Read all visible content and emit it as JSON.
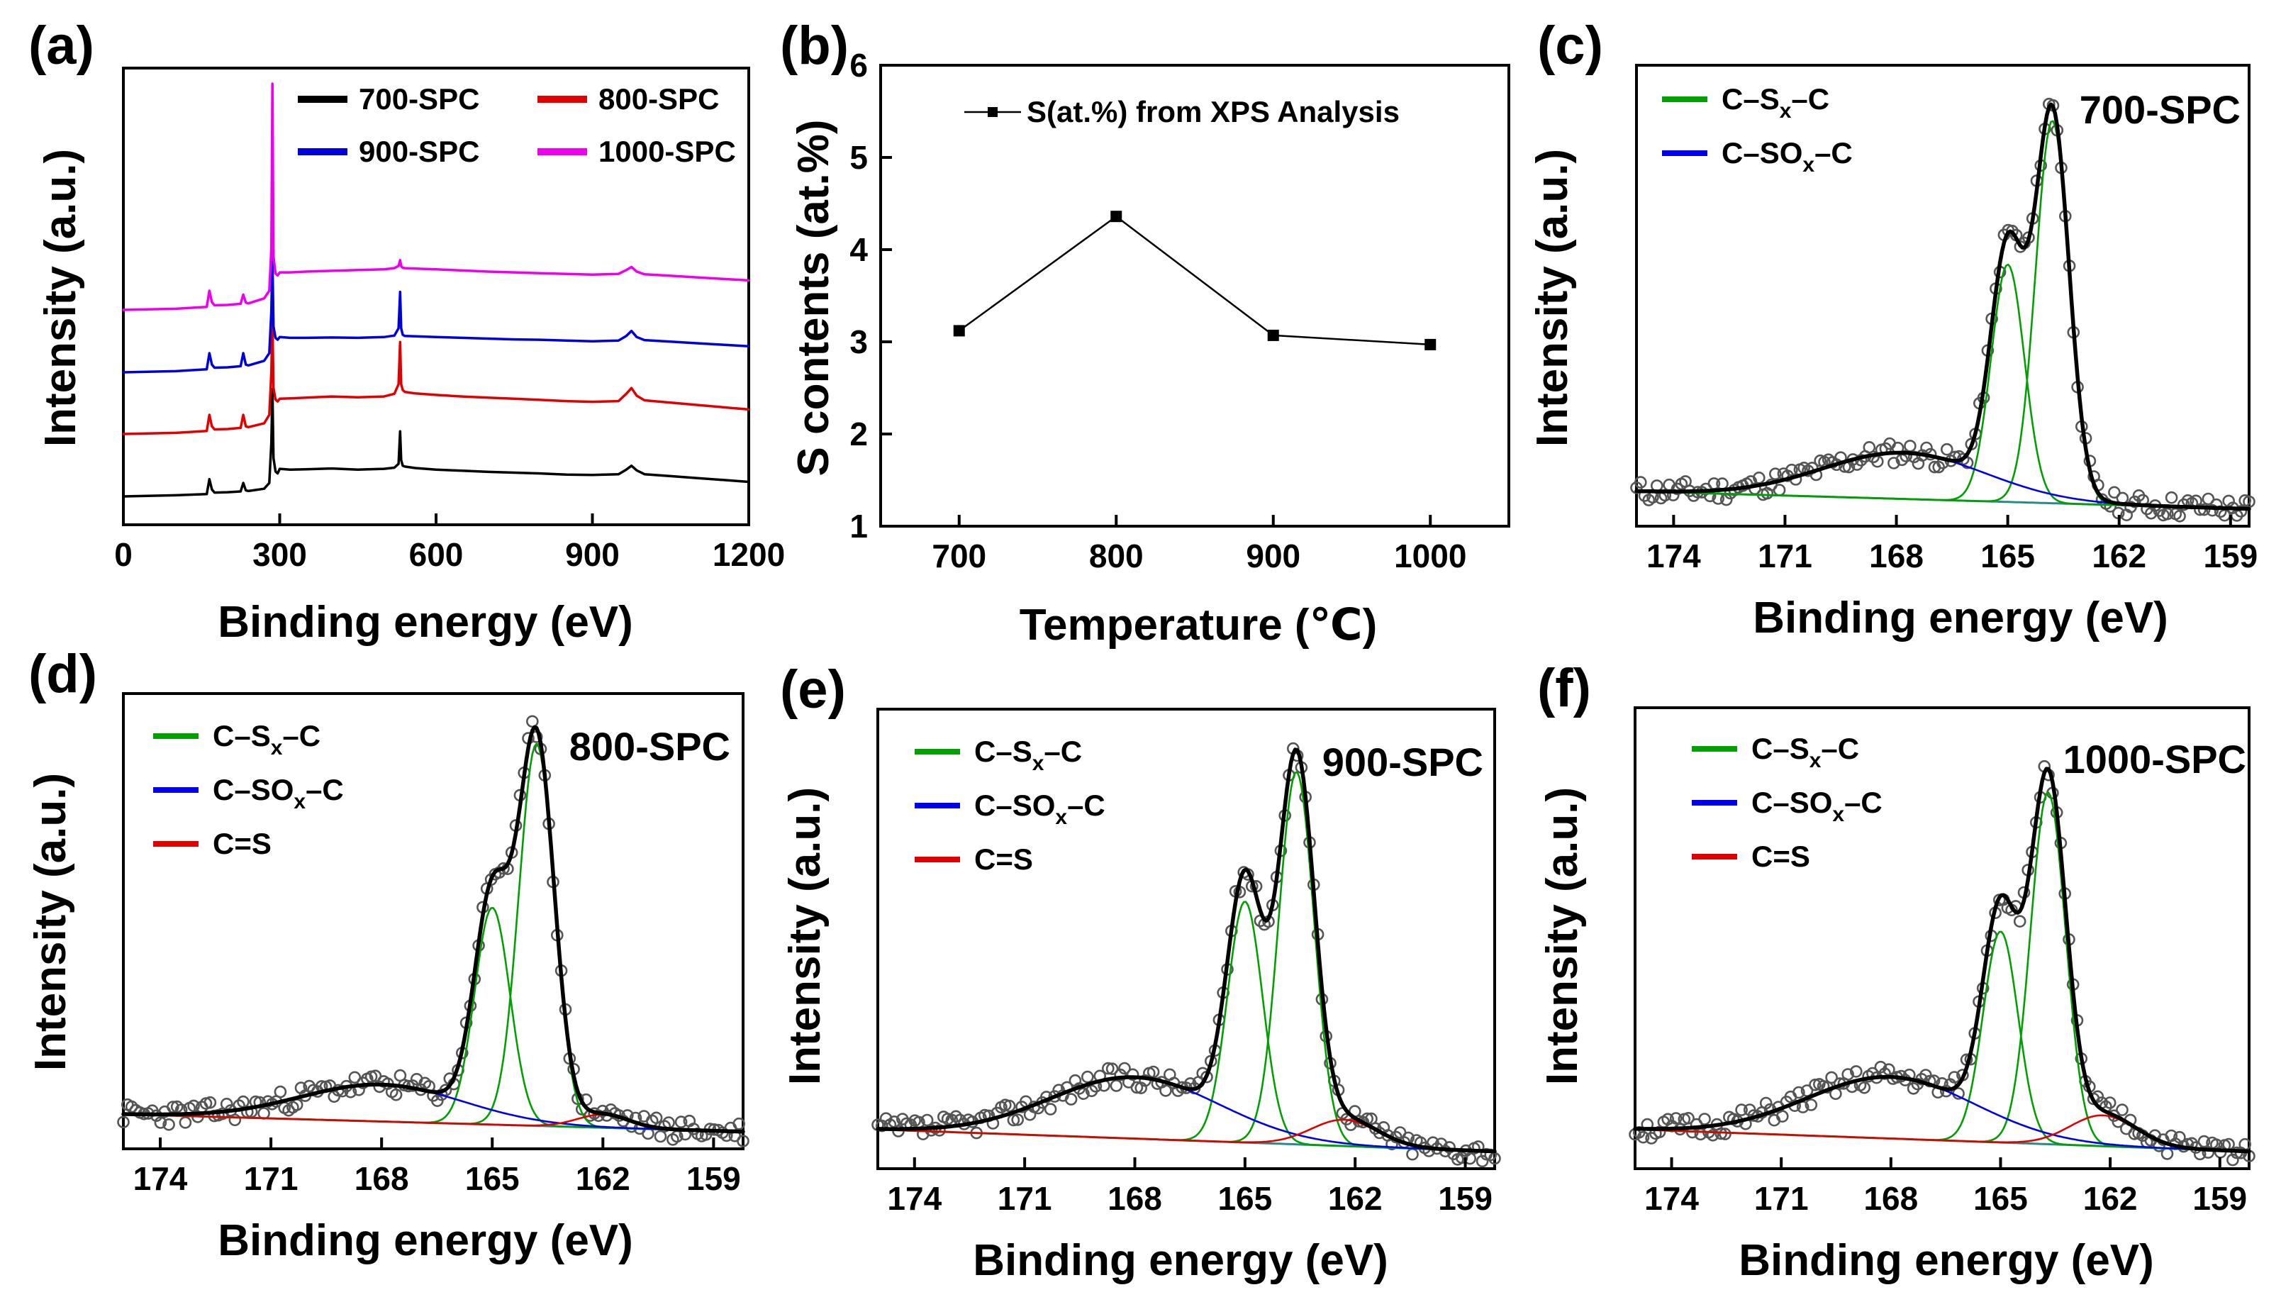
{
  "colors": {
    "s700": "#000000",
    "s800": "#e00000",
    "s900": "#0000dd",
    "s1000": "#ee00ee",
    "csxc": "#00a000",
    "csoxc": "#0000ee",
    "cs": "#e00000",
    "baseline": "#2a8a8a",
    "envelope": "#000000",
    "points": "#555555"
  },
  "chart_data": [
    {
      "panel": "(a)",
      "type": "line",
      "xlabel": "Binding energy (eV)",
      "ylabel": "Intensity (a.u.)",
      "xlim": [
        0,
        1200
      ],
      "xticks": [
        0,
        300,
        600,
        900,
        1200
      ],
      "x": [
        0,
        100,
        160,
        165,
        170,
        175,
        200,
        225,
        230,
        235,
        240,
        270,
        280,
        284,
        286,
        288,
        292,
        296,
        300,
        320,
        350,
        400,
        450,
        500,
        520,
        528,
        531,
        533,
        536,
        540,
        560,
        600,
        650,
        700,
        750,
        800,
        850,
        900,
        950,
        965,
        975,
        985,
        1000,
        1050,
        1100,
        1150,
        1200
      ],
      "series": [
        {
          "name": "700-SPC",
          "color_key": "s700",
          "values": [
            0.0,
            0.3,
            0.6,
            4.5,
            1.8,
            1.0,
            1.1,
            1.3,
            3.5,
            1.6,
            1.4,
            2.0,
            3.5,
            14,
            28,
            10,
            6.5,
            6.0,
            7.2,
            7.0,
            7.1,
            7.3,
            7.0,
            7.2,
            7.5,
            8.5,
            17,
            9.5,
            8.0,
            7.8,
            7.4,
            7.0,
            6.7,
            6.4,
            6.2,
            6.0,
            5.7,
            5.6,
            5.8,
            7.0,
            8.0,
            6.8,
            5.8,
            5.3,
            4.8,
            4.3,
            3.8
          ]
        },
        {
          "name": "800-SPC",
          "color_key": "s800",
          "values": [
            0.0,
            0.3,
            0.8,
            5.0,
            2.0,
            1.2,
            1.3,
            1.6,
            5.0,
            2.0,
            1.8,
            2.8,
            5.0,
            16,
            30,
            12,
            9.0,
            8.5,
            9.2,
            9.3,
            9.5,
            9.8,
            9.6,
            9.8,
            10.5,
            13,
            24,
            13,
            11.5,
            11.0,
            10.6,
            10.2,
            9.8,
            9.5,
            9.2,
            8.9,
            8.6,
            8.4,
            8.6,
            10.5,
            12,
            10.0,
            8.8,
            8.2,
            7.6,
            7.0,
            6.4
          ]
        },
        {
          "name": "900-SPC",
          "color_key": "s900",
          "values": [
            0.0,
            0.3,
            0.8,
            5.0,
            2.0,
            1.2,
            1.3,
            1.6,
            5.0,
            2.0,
            1.8,
            3.0,
            5.0,
            16,
            30,
            12,
            9.0,
            8.5,
            9.2,
            9.0,
            9.0,
            9.1,
            9.0,
            9.2,
            9.6,
            11.5,
            21,
            11.5,
            9.8,
            9.5,
            9.4,
            9.2,
            9.0,
            8.8,
            8.6,
            8.5,
            8.3,
            8.1,
            8.3,
            9.5,
            10.8,
            9.2,
            8.4,
            8.0,
            7.6,
            7.2,
            6.8
          ]
        },
        {
          "name": "1000-SPC",
          "color_key": "s1000",
          "values": [
            0.0,
            0.3,
            0.8,
            5.0,
            2.0,
            1.2,
            1.3,
            1.6,
            4.0,
            1.9,
            1.7,
            3.0,
            5.0,
            16,
            60,
            14,
            9.5,
            9.0,
            9.8,
            9.8,
            10.0,
            10.2,
            10.4,
            10.6,
            10.9,
            11.5,
            13.0,
            11.4,
            11.0,
            10.9,
            10.8,
            10.6,
            10.3,
            10.0,
            9.8,
            9.6,
            9.4,
            9.2,
            9.4,
            10.4,
            11.2,
            10.0,
            9.3,
            8.9,
            8.5,
            8.1,
            7.7
          ]
        }
      ],
      "legend": [
        {
          "label": "700-SPC",
          "color_key": "s700"
        },
        {
          "label": "800-SPC",
          "color_key": "s800"
        },
        {
          "label": "900-SPC",
          "color_key": "s900"
        },
        {
          "label": "1000-SPC",
          "color_key": "s1000"
        }
      ]
    },
    {
      "panel": "(b)",
      "type": "line",
      "xlabel": "Temperature (℃)",
      "ylabel": "S contents (at.%)",
      "xlim": [
        650,
        1050
      ],
      "ylim": [
        1,
        6
      ],
      "xticks": [
        700,
        800,
        900,
        1000
      ],
      "yticks": [
        1,
        2,
        3,
        4,
        5,
        6
      ],
      "x": [
        700,
        800,
        900,
        1000
      ],
      "series": [
        {
          "name": "S(at.%) from XPS Analysis",
          "values": [
            3.12,
            4.36,
            3.07,
            2.97
          ]
        }
      ],
      "legend": [
        {
          "label": "S(at.%) from XPS Analysis"
        }
      ]
    },
    {
      "panel": "(c)",
      "type": "line",
      "sample": "700-SPC",
      "xlabel": "Binding energy (eV)",
      "ylabel": "Intensity (a.u.)",
      "xlim": [
        175,
        158.5
      ],
      "xticks": [
        174,
        171,
        168,
        165,
        162,
        159
      ],
      "baseline": {
        "start": 0.06,
        "end": 0.02
      },
      "peaks": [
        {
          "name": "C–Sx–C",
          "color_key": "csxc",
          "center": 163.8,
          "height": 0.87,
          "width": 0.45
        },
        {
          "name": "C–Sx–C",
          "color_key": "csxc",
          "center": 165.0,
          "height": 0.54,
          "width": 0.45
        },
        {
          "name": "C–SOx–C",
          "color_key": "csoxc",
          "center": 167.8,
          "height": 0.105,
          "width": 2.2
        }
      ],
      "legend": [
        {
          "label": "C–S",
          "sub": "x",
          "label_end": "–C",
          "color_key": "csxc"
        },
        {
          "label": "C–SO",
          "sub": "x",
          "label_end": "–C",
          "color_key": "csoxc"
        }
      ]
    },
    {
      "panel": "(d)",
      "type": "line",
      "sample": "800-SPC",
      "xlabel": "Binding energy (eV)",
      "ylabel": "Intensity (a.u.)",
      "xlim": [
        175,
        158.2
      ],
      "xticks": [
        174,
        171,
        168,
        165,
        162,
        159
      ],
      "baseline": {
        "start": 0.06,
        "end": 0.02
      },
      "peaks": [
        {
          "name": "C–Sx–C",
          "color_key": "csxc",
          "center": 163.8,
          "height": 0.88,
          "width": 0.48
        },
        {
          "name": "C–Sx–C",
          "color_key": "csxc",
          "center": 165.0,
          "height": 0.5,
          "width": 0.48
        },
        {
          "name": "C–SOx–C",
          "color_key": "csoxc",
          "center": 168.0,
          "height": 0.085,
          "width": 2.2
        },
        {
          "name": "C=S",
          "color_key": "cs",
          "center": 162.0,
          "height": 0.03,
          "width": 0.7
        }
      ],
      "legend": [
        {
          "label": "C–S",
          "sub": "x",
          "label_end": "–C",
          "color_key": "csxc"
        },
        {
          "label": "C–SO",
          "sub": "x",
          "label_end": "–C",
          "color_key": "csoxc"
        },
        {
          "label": "C=S",
          "sub": "",
          "label_end": "",
          "color_key": "cs"
        }
      ]
    },
    {
      "panel": "(e)",
      "type": "line",
      "sample": "900-SPC",
      "xlabel": "Binding energy (eV)",
      "ylabel": "Intensity (a.u.)",
      "xlim": [
        175,
        158.2
      ],
      "xticks": [
        174,
        171,
        168,
        165,
        162,
        159
      ],
      "baseline": {
        "start": 0.07,
        "end": 0.02
      },
      "peaks": [
        {
          "name": "C–Sx–C",
          "color_key": "csxc",
          "center": 163.6,
          "height": 0.85,
          "width": 0.48
        },
        {
          "name": "C–Sx–C",
          "color_key": "csxc",
          "center": 165.0,
          "height": 0.55,
          "width": 0.48
        },
        {
          "name": "C–SOx–C",
          "color_key": "csoxc",
          "center": 168.0,
          "height": 0.14,
          "width": 2.3
        },
        {
          "name": "C=S",
          "color_key": "cs",
          "center": 162.3,
          "height": 0.06,
          "width": 0.9
        }
      ],
      "legend": [
        {
          "label": "C–S",
          "sub": "x",
          "label_end": "–C",
          "color_key": "csxc"
        },
        {
          "label": "C–SO",
          "sub": "x",
          "label_end": "–C",
          "color_key": "csoxc"
        },
        {
          "label": "C=S",
          "sub": "",
          "label_end": "",
          "color_key": "cs"
        }
      ]
    },
    {
      "panel": "(f)",
      "type": "line",
      "sample": "1000-SPC",
      "xlabel": "Binding energy (eV)",
      "ylabel": "Intensity (a.u.)",
      "xlim": [
        175,
        158.2
      ],
      "xticks": [
        174,
        171,
        168,
        165,
        162,
        159
      ],
      "baseline": {
        "start": 0.07,
        "end": 0.02
      },
      "peaks": [
        {
          "name": "C–Sx–C",
          "color_key": "csxc",
          "center": 163.7,
          "height": 0.8,
          "width": 0.48
        },
        {
          "name": "C–Sx–C",
          "color_key": "csxc",
          "center": 165.0,
          "height": 0.48,
          "width": 0.48
        },
        {
          "name": "C–SOx–C",
          "color_key": "csoxc",
          "center": 168.0,
          "height": 0.14,
          "width": 2.3
        },
        {
          "name": "C=S",
          "color_key": "cs",
          "center": 162.2,
          "height": 0.07,
          "width": 0.9
        }
      ],
      "legend": [
        {
          "label": "C–S",
          "sub": "x",
          "label_end": "–C",
          "color_key": "csxc"
        },
        {
          "label": "C–SO",
          "sub": "x",
          "label_end": "–C",
          "color_key": "csoxc"
        },
        {
          "label": "C=S",
          "sub": "",
          "label_end": "",
          "color_key": "cs"
        }
      ]
    }
  ]
}
